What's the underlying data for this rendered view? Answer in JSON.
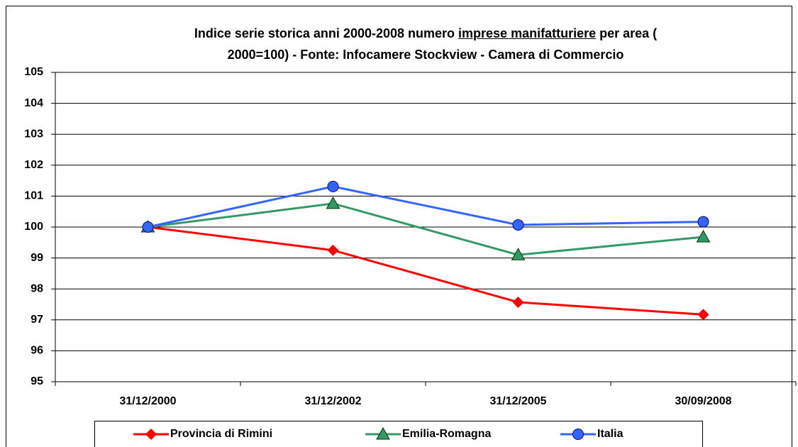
{
  "chart_data": {
    "type": "line",
    "title_lines": [
      [
        "Indice serie storica anni 2000-2008 numero ",
        "imprese manifatturiere",
        " per area ("
      ],
      [
        "2000=100) - Fonte: Infocamere Stockview - Camera di Commercio"
      ]
    ],
    "title_underline": [
      [
        false,
        true,
        false
      ],
      [
        false
      ]
    ],
    "categories": [
      "31/12/2000",
      "31/12/2002",
      "31/12/2005",
      "30/09/2008"
    ],
    "series": [
      {
        "name": "Provincia di Rimini",
        "color": "#ff0000",
        "marker": "diamond",
        "values": [
          100,
          99.25,
          97.57,
          97.17
        ]
      },
      {
        "name": "Emilia-Romagna",
        "color": "#339966",
        "marker": "triangle",
        "values": [
          100,
          100.76,
          99.1,
          99.68
        ]
      },
      {
        "name": "Italia",
        "color": "#3366ff",
        "marker": "circle",
        "values": [
          100,
          101.31,
          100.07,
          100.17
        ]
      }
    ],
    "ylim": [
      95,
      105
    ],
    "yticks": [
      95,
      96,
      97,
      98,
      99,
      100,
      101,
      102,
      103,
      104,
      105
    ],
    "grid": true,
    "legend": "bottom"
  }
}
